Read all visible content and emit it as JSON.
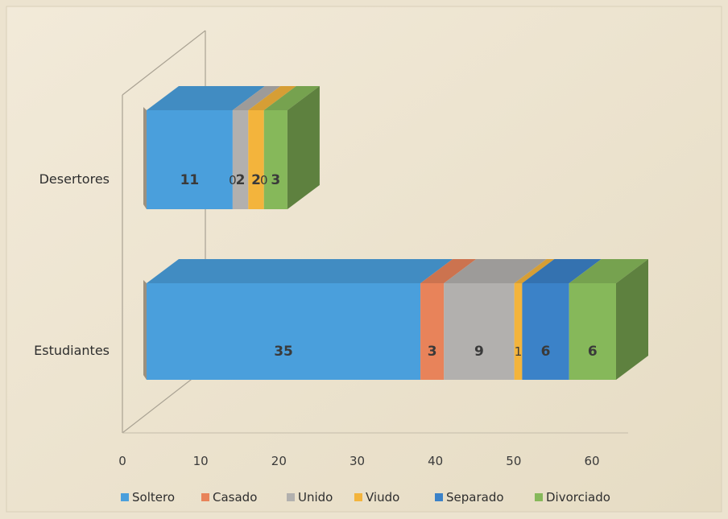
{
  "chart_data": {
    "type": "bar",
    "orientation": "horizontal",
    "stacked": true,
    "style": "3d",
    "categories": [
      "Estudiantes",
      "Desertores"
    ],
    "series": [
      {
        "name": "Soltero",
        "values": [
          35,
          11
        ],
        "labels": [
          "35",
          "11"
        ],
        "color": "#4a9fdc"
      },
      {
        "name": "Casado",
        "values": [
          3,
          0
        ],
        "labels": [
          "3",
          "0"
        ],
        "color": "#e8835a"
      },
      {
        "name": "Unido",
        "values": [
          9,
          2
        ],
        "labels": [
          "9",
          "2"
        ],
        "color": "#b2b0ae"
      },
      {
        "name": "Viudo",
        "values": [
          1,
          2
        ],
        "labels": [
          "1",
          "2"
        ],
        "color": "#f3b43c"
      },
      {
        "name": "Separado",
        "values": [
          6,
          0
        ],
        "labels": [
          "6",
          "0"
        ],
        "color": "#3b82c8"
      },
      {
        "name": "Divorciado",
        "values": [
          6,
          3
        ],
        "labels": [
          "6",
          "3"
        ],
        "color": "#86b85a"
      }
    ],
    "xlim": [
      0,
      60
    ],
    "xticks": [
      0,
      10,
      20,
      30,
      40,
      50,
      60
    ],
    "title": "",
    "xlabel": "",
    "ylabel": "",
    "legend": "bottom"
  }
}
